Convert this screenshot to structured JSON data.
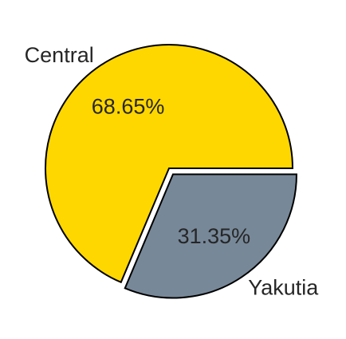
{
  "chart_data": {
    "type": "pie",
    "title": "",
    "slices": [
      {
        "label": "Central",
        "value": 68.65,
        "pct_label": "68.65%",
        "color": "#FFD700",
        "exploded": false
      },
      {
        "label": "Yakutia",
        "value": 31.35,
        "pct_label": "31.35%",
        "color": "#778899",
        "exploded": true
      }
    ],
    "start_angle_deg": 0,
    "direction": "counterclockwise",
    "legend": "none"
  }
}
